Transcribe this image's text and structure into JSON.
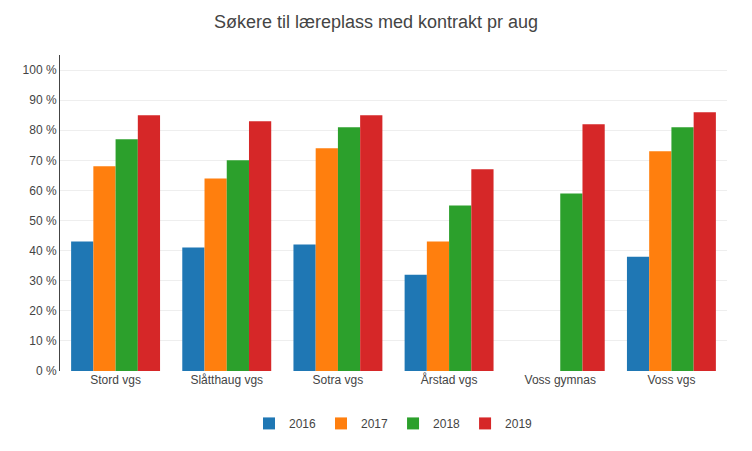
{
  "chart_data": {
    "type": "bar",
    "title": "Søkere til læreplass med kontrakt pr aug",
    "categories": [
      "Stord vgs",
      "Slåtthaug vgs",
      "Sotra vgs",
      "Årstad vgs",
      "Voss gymnas",
      "Voss vgs"
    ],
    "series": [
      {
        "name": "2016",
        "values": [
          0.43,
          0.41,
          0.42,
          0.32,
          0.0,
          0.38
        ]
      },
      {
        "name": "2017",
        "values": [
          0.68,
          0.64,
          0.74,
          0.43,
          0.0,
          0.73
        ]
      },
      {
        "name": "2018",
        "values": [
          0.77,
          0.7,
          0.81,
          0.55,
          0.59,
          0.81
        ]
      },
      {
        "name": "2019",
        "values": [
          0.85,
          0.83,
          0.85,
          0.67,
          0.82,
          0.86
        ]
      }
    ],
    "ylim": [
      0,
      1.05
    ],
    "yticks": [
      {
        "value": 0.0,
        "label": "0 %"
      },
      {
        "value": 0.1,
        "label": "10 %"
      },
      {
        "value": 0.2,
        "label": "20 %"
      },
      {
        "value": 0.3,
        "label": "30 %"
      },
      {
        "value": 0.4,
        "label": "40 %"
      },
      {
        "value": 0.5,
        "label": "50 %"
      },
      {
        "value": 0.6,
        "label": "60 %"
      },
      {
        "value": 0.7,
        "label": "70 %"
      },
      {
        "value": 0.8,
        "label": "80 %"
      },
      {
        "value": 0.9,
        "label": "90 %"
      },
      {
        "value": 1.0,
        "label": "100 %"
      }
    ],
    "grid": true,
    "legend": "bottom"
  }
}
